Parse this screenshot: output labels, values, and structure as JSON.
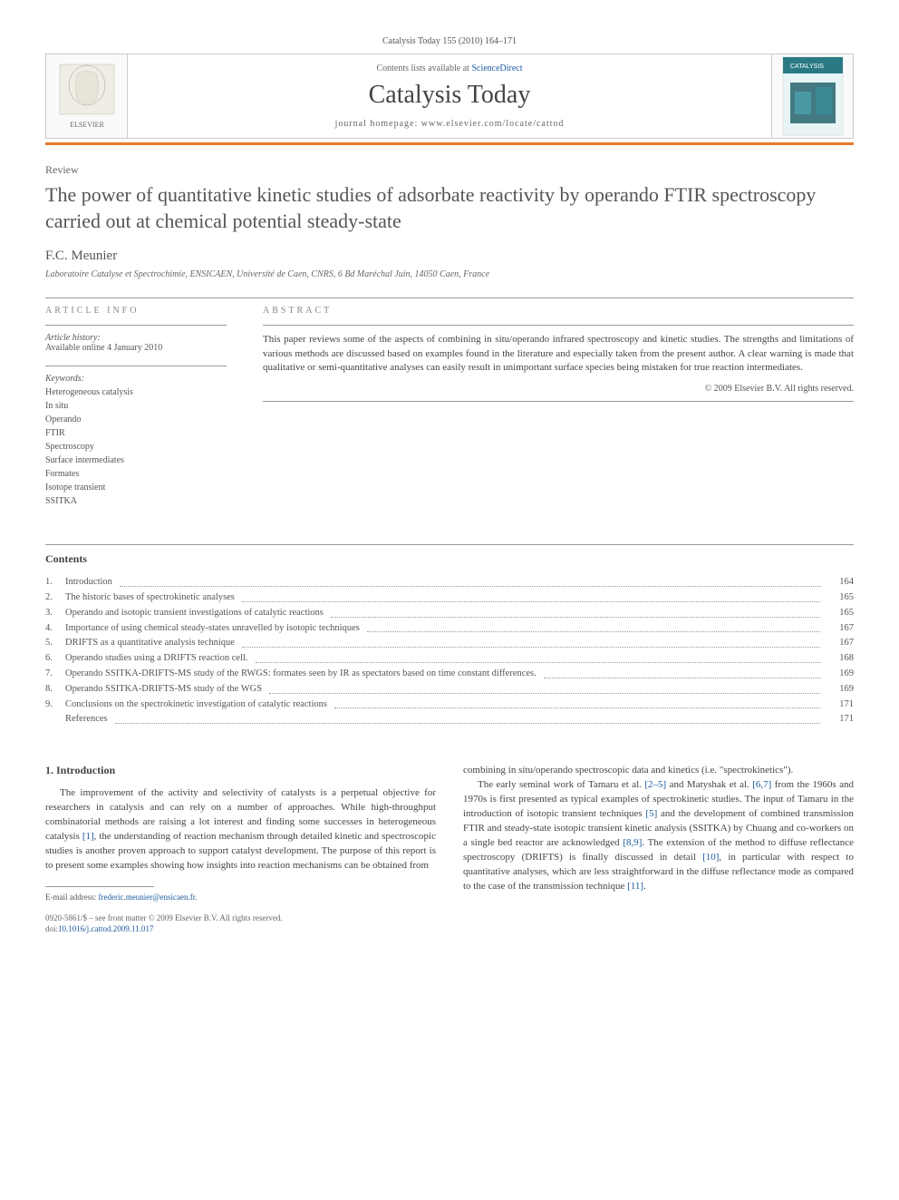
{
  "journal_line": "Catalysis Today 155 (2010) 164–171",
  "header": {
    "contents_prefix": "Contents lists available at ",
    "contents_link": "ScienceDirect",
    "journal_name": "Catalysis Today",
    "homepage_prefix": "journal homepage: ",
    "homepage": "www.elsevier.com/locate/cattod",
    "elsevier_label": "ELSEVIER",
    "cover_label": "CATALYSIS"
  },
  "article_type": "Review",
  "title": "The power of quantitative kinetic studies of adsorbate reactivity by operando FTIR spectroscopy carried out at chemical potential steady-state",
  "author": "F.C. Meunier",
  "affiliation": "Laboratoire Catalyse et Spectrochimie, ENSICAEN, Université de Caen, CNRS, 6 Bd Maréchal Juin, 14050 Caen, France",
  "info_label": "ARTICLE INFO",
  "abstract_label": "ABSTRACT",
  "history_label": "Article history:",
  "history_text": "Available online 4 January 2010",
  "keywords_label": "Keywords:",
  "keywords": [
    "Heterogeneous catalysis",
    "In situ",
    "Operando",
    "FTIR",
    "Spectroscopy",
    "Surface intermediates",
    "Formates",
    "Isotope transient",
    "SSITKA"
  ],
  "abstract": "This paper reviews some of the aspects of combining in situ/operando infrared spectroscopy and kinetic studies. The strengths and limitations of various methods are discussed based on examples found in the literature and especially taken from the present author. A clear warning is made that qualitative or semi-quantitative analyses can easily result in unimportant surface species being mistaken for true reaction intermediates.",
  "copyright": "© 2009 Elsevier B.V. All rights reserved.",
  "contents_heading": "Contents",
  "toc": [
    {
      "num": "1.",
      "title": "Introduction",
      "page": "164"
    },
    {
      "num": "2.",
      "title": "The historic bases of spectrokinetic analyses",
      "page": "165"
    },
    {
      "num": "3.",
      "title": "Operando and isotopic transient investigations of catalytic reactions",
      "page": "165"
    },
    {
      "num": "4.",
      "title": "Importance of using chemical steady-states unravelled by isotopic techniques",
      "page": "167"
    },
    {
      "num": "5.",
      "title": "DRIFTS as a quantitative analysis technique",
      "page": "167"
    },
    {
      "num": "6.",
      "title": "Operando studies using a DRIFTS reaction cell.",
      "page": "168"
    },
    {
      "num": "7.",
      "title": "Operando SSITKA-DRIFTS-MS study of the RWGS: formates seen by IR as spectators based on time constant differences.",
      "page": "169"
    },
    {
      "num": "8.",
      "title": "Operando SSITKA-DRIFTS-MS study of the WGS",
      "page": "169"
    },
    {
      "num": "9.",
      "title": "Conclusions on the spectrokinetic investigation of catalytic reactions",
      "page": "171"
    },
    {
      "num": "",
      "title": "References",
      "page": "171"
    }
  ],
  "intro_heading": "1. Introduction",
  "col1_p1_a": "The improvement of the activity and selectivity of catalysts is a perpetual objective for researchers in catalysis and can rely on a number of approaches. While high-throughput combinatorial methods are raising a lot interest and finding some successes in heterogeneous catalysis ",
  "col1_ref1": "[1]",
  "col1_p1_b": ", the understanding of reaction mechanism through detailed kinetic and spectroscopic studies is another proven approach to support catalyst development. The purpose of this report is to present some examples showing how  insights into reaction mechanisms can be obtained from",
  "col2_p1_a": "combining in situ/operando spectroscopic data and kinetics (i.e. \"spectrokinetics\").",
  "col2_p2_a": "The early seminal work of Tamaru et al. ",
  "col2_ref25": "[2–5]",
  "col2_p2_b": " and Matyshak et al. ",
  "col2_ref67": "[6,7]",
  "col2_p2_c": " from the 1960s and 1970s is first presented as typical examples of spectrokinetic studies. The input of Tamaru in the introduction of isotopic transient techniques ",
  "col2_ref5": "[5]",
  "col2_p2_d": " and the development of combined transmission FTIR and steady-state isotopic transient kinetic analysis (SSITKA) by Chuang and co-workers on a single bed reactor are acknowledged ",
  "col2_ref89": "[8,9]",
  "col2_p2_e": ". The extension of the method to diffuse reflectance spectroscopy (DRIFTS) is finally discussed in detail ",
  "col2_ref10": "[10]",
  "col2_p2_f": ", in particular with respect to quantitative analyses, which are less straightforward in the diffuse reflectance mode as compared to the case of the transmission technique ",
  "col2_ref11": "[11]",
  "col2_p2_g": ".",
  "email_label": "E-mail address: ",
  "email": "frederic.meunier@ensicaen.fr",
  "footer_line1": "0920-5861/$ – see front matter © 2009 Elsevier B.V. All rights reserved.",
  "doi_prefix": "doi:",
  "doi": "10.1016/j.cattod.2009.11.017",
  "colors": {
    "orange": "#e8792b",
    "link": "#1a5a9e",
    "text": "#444444"
  }
}
